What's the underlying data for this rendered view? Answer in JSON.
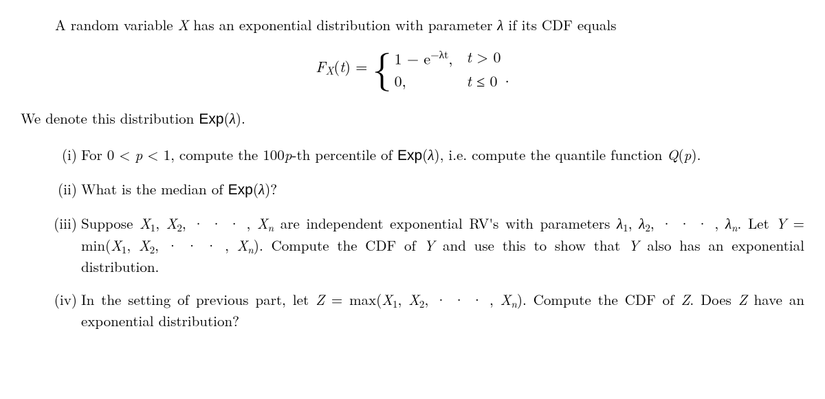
{
  "intro": "A random variable X has an exponential distribution with parameter λ if its CDF equals",
  "equation": {
    "lhs_F": "F",
    "lhs_sub": "X",
    "lhs_arg": "(t) = ",
    "case1_expr_a": "1 − e",
    "case1_exp": "−λt",
    "case1_comma": ",",
    "case1_cond": "t > 0",
    "case2_expr": "0,",
    "case2_cond": "t ≤ 0",
    "tail": "."
  },
  "denote": {
    "pre": "We denote this distribution ",
    "fn": "Exp",
    "arg": "(λ)."
  },
  "items": [
    {
      "num": "(i)",
      "pre": "For 0 < ",
      "p": "p",
      "mid1": " < 1, compute the 100",
      "p2": "p",
      "mid2": "-th percentile of ",
      "fn": "Exp",
      "arg": "(λ)",
      "mid3": ", i.e. compute the quantile function ",
      "Q": "Q",
      "Qarg": "(p)",
      "end": "."
    },
    {
      "num": "(ii)",
      "pre": "What is the median of ",
      "fn": "Exp",
      "arg": "(λ)",
      "end": "?"
    },
    {
      "num": "(iii)",
      "a": "Suppose ",
      "x1": "X",
      "s1": "1",
      "c1": ", ",
      "x2": "X",
      "s2": "2",
      "c2": ", · · · , ",
      "xn": "X",
      "sn": "n",
      "b": " are independent exponential RV's with parameters ",
      "l1": "λ",
      "ls1": "1",
      "lc1": ", ",
      "l2": "λ",
      "ls2": "2",
      "lc2": ", · · · , ",
      "ln": "λ",
      "lsn": "n",
      "lend": ". ",
      "c": "Let ",
      "Y": "Y",
      "eq": " = min(",
      "mx1": "X",
      "ms1": "1",
      "mc1": ", ",
      "mx2": "X",
      "ms2": "2",
      "mc2": ", · · · , ",
      "mxn": "X",
      "msn": "n",
      "mcend": "). ",
      "d": "Compute the CDF of ",
      "Y2": "Y",
      "e": " and use this to show that ",
      "Y3": "Y",
      "f": " also has an exponential distribution."
    },
    {
      "num": "(iv)",
      "a": "In the setting of previous part, let ",
      "Z": "Z",
      "eq": " = max(",
      "mx1": "X",
      "ms1": "1",
      "mc1": ", ",
      "mx2": "X",
      "ms2": "2",
      "mc2": ", · · · , ",
      "mxn": "X",
      "msn": "n",
      "mcend": "). ",
      "b": "Compute the CDF of ",
      "Z2": "Z",
      "c": ". Does ",
      "Z3": "Z",
      "d": " have an exponential distribution?"
    }
  ]
}
